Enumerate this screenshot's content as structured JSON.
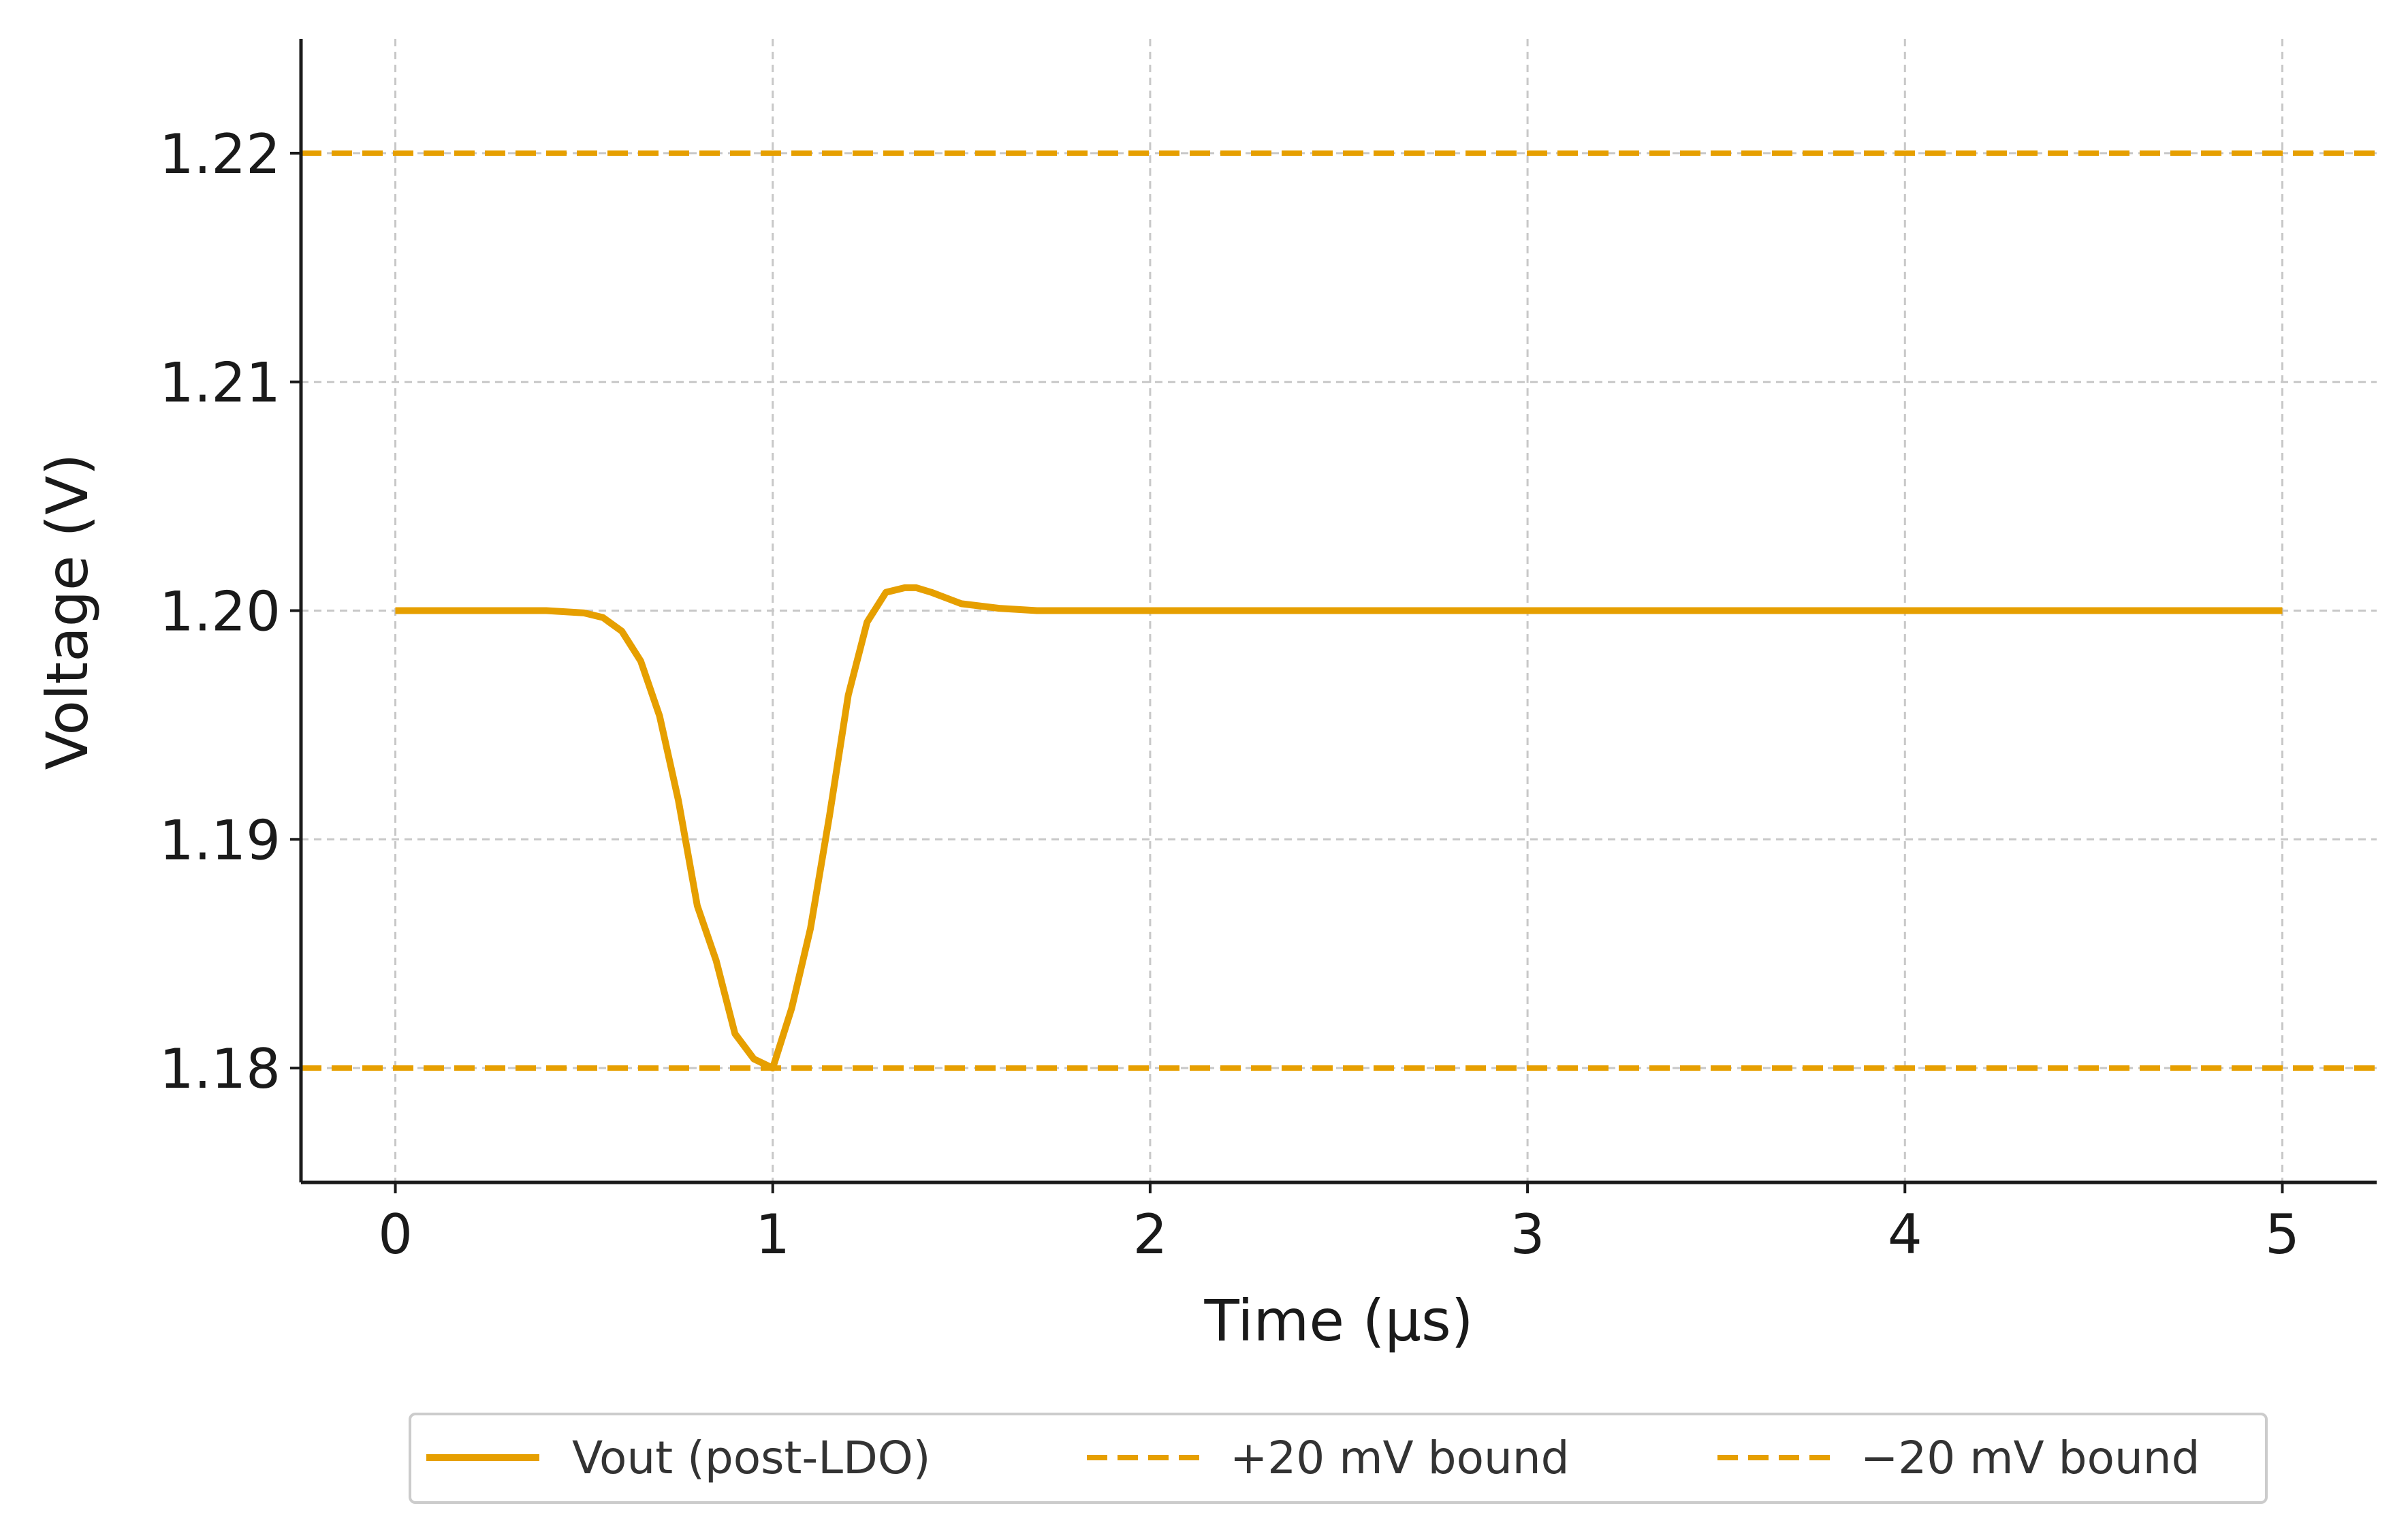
{
  "chart_data": {
    "type": "line",
    "title": "",
    "xlabel": "Time (µs)",
    "ylabel": "Voltage (V)",
    "xlim": [
      -0.25,
      5.25
    ],
    "ylim": [
      1.175,
      1.225
    ],
    "x_ticks": [
      0,
      1,
      2,
      3,
      4,
      5
    ],
    "y_ticks": [
      1.18,
      1.19,
      1.2,
      1.21,
      1.22
    ],
    "x_tick_labels": [
      "0",
      "1",
      "2",
      "3",
      "4",
      "5"
    ],
    "y_tick_labels": [
      "1.18",
      "1.19",
      "1.20",
      "1.21",
      "1.22"
    ],
    "grid": true,
    "legend_position": "bottom-center",
    "series": [
      {
        "name": "Vout (post-LDO)",
        "style": "solid",
        "color": "#E69F00",
        "x": [
          0,
          0.1,
          0.2,
          0.3,
          0.4,
          0.5,
          0.55,
          0.6,
          0.65,
          0.7,
          0.75,
          0.8,
          0.85,
          0.9,
          0.95,
          1.0,
          1.05,
          1.1,
          1.15,
          1.2,
          1.25,
          1.3,
          1.35,
          1.38,
          1.42,
          1.5,
          1.6,
          1.7,
          1.8,
          2.0,
          2.5,
          3.0,
          3.5,
          4.0,
          4.5,
          5.0
        ],
        "y": [
          1.2,
          1.2,
          1.2,
          1.2,
          1.2,
          1.1999,
          1.1997,
          1.1991,
          1.1978,
          1.1954,
          1.1917,
          1.1871,
          1.1847,
          1.1815,
          1.1804,
          1.18,
          1.1826,
          1.1861,
          1.191,
          1.1963,
          1.1995,
          1.2008,
          1.201,
          1.201,
          1.2008,
          1.2003,
          1.2001,
          1.2,
          1.2,
          1.2,
          1.2,
          1.2,
          1.2,
          1.2,
          1.2,
          1.2
        ]
      },
      {
        "name": "+20 mV bound",
        "style": "dashed",
        "color": "#E69F00",
        "y_constant": 1.22
      },
      {
        "name": "−20 mV bound",
        "style": "dashed",
        "color": "#E69F00",
        "y_constant": 1.18
      }
    ]
  }
}
